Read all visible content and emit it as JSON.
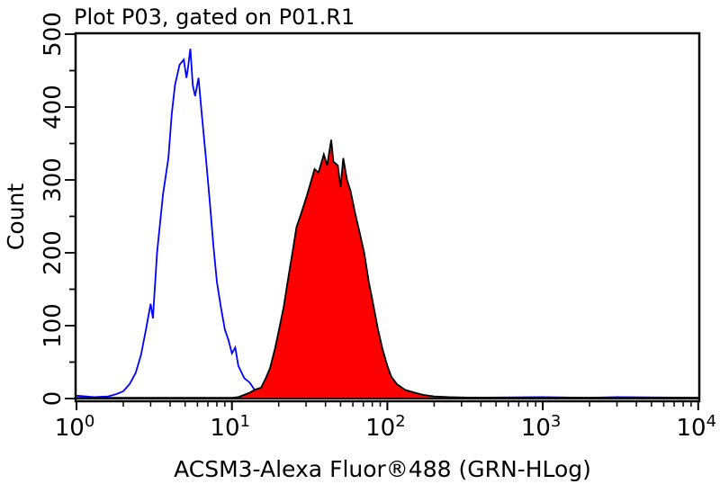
{
  "chart_data": {
    "type": "area",
    "title": "Plot P03, gated on P01.R1",
    "xlabel": "ACSM3-Alexa Fluor®488 (GRN-HLog)",
    "ylabel": "Count",
    "xscale": "log",
    "xlim": [
      1,
      10000
    ],
    "ylim": [
      0,
      500
    ],
    "grid": false,
    "x_ticks": [
      {
        "base": "10",
        "exp": "0",
        "value": 1
      },
      {
        "base": "10",
        "exp": "1",
        "value": 10
      },
      {
        "base": "10",
        "exp": "2",
        "value": 100
      },
      {
        "base": "10",
        "exp": "3",
        "value": 1000
      },
      {
        "base": "10",
        "exp": "4",
        "value": 10000
      }
    ],
    "y_ticks": [
      "0",
      "100",
      "200",
      "300",
      "400",
      "500"
    ],
    "series": [
      {
        "style": "outline",
        "color": "#0000ff",
        "points": [
          [
            1,
            4
          ],
          [
            1.3,
            2
          ],
          [
            1.6,
            3
          ],
          [
            1.8,
            6
          ],
          [
            2.0,
            10
          ],
          [
            2.2,
            20
          ],
          [
            2.4,
            35
          ],
          [
            2.6,
            60
          ],
          [
            2.8,
            95
          ],
          [
            3.0,
            130
          ],
          [
            3.1,
            110
          ],
          [
            3.3,
            200
          ],
          [
            3.6,
            280
          ],
          [
            3.9,
            330
          ],
          [
            4.1,
            390
          ],
          [
            4.3,
            430
          ],
          [
            4.6,
            458
          ],
          [
            4.9,
            465
          ],
          [
            5.1,
            440
          ],
          [
            5.2,
            452
          ],
          [
            5.4,
            480
          ],
          [
            5.6,
            430
          ],
          [
            5.8,
            415
          ],
          [
            6.1,
            440
          ],
          [
            6.4,
            390
          ],
          [
            6.8,
            330
          ],
          [
            7.2,
            270
          ],
          [
            7.6,
            210
          ],
          [
            8.0,
            160
          ],
          [
            8.5,
            125
          ],
          [
            9.0,
            95
          ],
          [
            9.5,
            80
          ],
          [
            10,
            62
          ],
          [
            10.5,
            70
          ],
          [
            11,
            45
          ],
          [
            12,
            28
          ],
          [
            13,
            22
          ],
          [
            14,
            12
          ],
          [
            15,
            6
          ],
          [
            17,
            3
          ],
          [
            20,
            2
          ],
          [
            50,
            1
          ],
          [
            100,
            2
          ],
          [
            300,
            1
          ],
          [
            1000,
            2
          ],
          [
            2000,
            1
          ],
          [
            3000,
            2
          ],
          [
            10000,
            1
          ]
        ]
      },
      {
        "style": "filled",
        "color": "#ff0000",
        "outline": "#000000",
        "points": [
          [
            1,
            1
          ],
          [
            10,
            1
          ],
          [
            11,
            2
          ],
          [
            12,
            5
          ],
          [
            13,
            8
          ],
          [
            14,
            12
          ],
          [
            15.4,
            15
          ],
          [
            16.5,
            28
          ],
          [
            17.6,
            42
          ],
          [
            19,
            70
          ],
          [
            20.1,
            95
          ],
          [
            21.5,
            125
          ],
          [
            23,
            165
          ],
          [
            24.5,
            200
          ],
          [
            26,
            235
          ],
          [
            28,
            255
          ],
          [
            30,
            275
          ],
          [
            32,
            295
          ],
          [
            34,
            315
          ],
          [
            36,
            310
          ],
          [
            39,
            335
          ],
          [
            41,
            320
          ],
          [
            43.5,
            355
          ],
          [
            45,
            325
          ],
          [
            48,
            320
          ],
          [
            50,
            290
          ],
          [
            52,
            330
          ],
          [
            55,
            300
          ],
          [
            58,
            285
          ],
          [
            62,
            255
          ],
          [
            66,
            230
          ],
          [
            71,
            200
          ],
          [
            76,
            160
          ],
          [
            81,
            130
          ],
          [
            87,
            95
          ],
          [
            93,
            68
          ],
          [
            100,
            45
          ],
          [
            106,
            30
          ],
          [
            115,
            20
          ],
          [
            130,
            12
          ],
          [
            150,
            8
          ],
          [
            170,
            5
          ],
          [
            200,
            3
          ],
          [
            250,
            2
          ],
          [
            400,
            1
          ],
          [
            10000,
            1
          ]
        ]
      }
    ]
  }
}
